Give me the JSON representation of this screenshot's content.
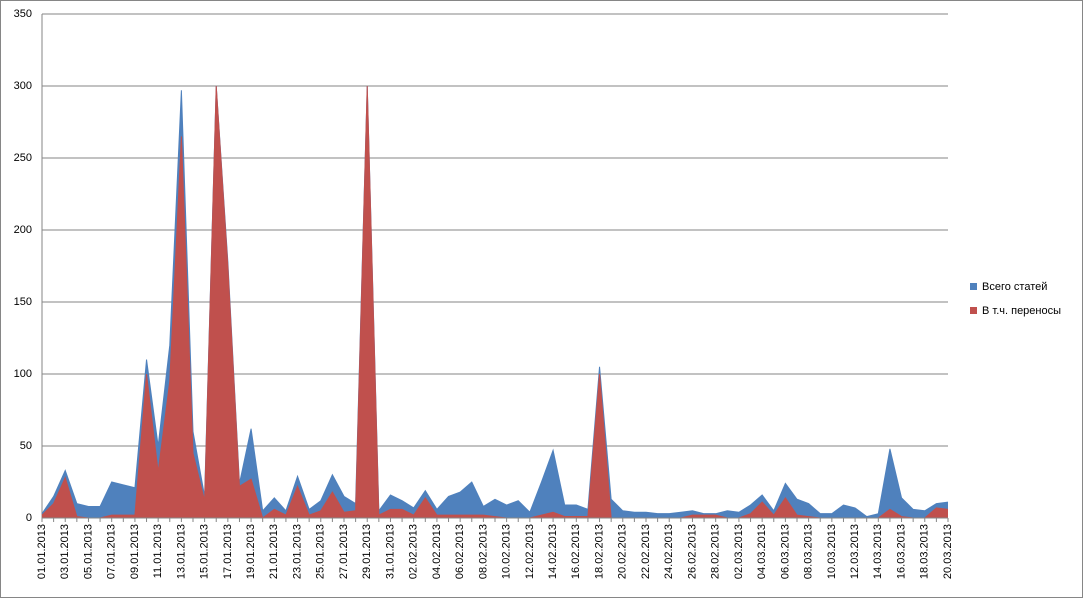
{
  "chart_data": {
    "type": "area",
    "categories": [
      "01.01.2013",
      null,
      "03.01.2013",
      null,
      "05.01.2013",
      null,
      "07.01.2013",
      null,
      "09.01.2013",
      null,
      "11.01.2013",
      null,
      "13.01.2013",
      null,
      "15.01.2013",
      null,
      "17.01.2013",
      null,
      "19.01.2013",
      null,
      "21.01.2013",
      null,
      "23.01.2013",
      null,
      "25.01.2013",
      null,
      "27.01.2013",
      null,
      "29.01.2013",
      null,
      "31.01.2013",
      null,
      "02.02.2013",
      null,
      "04.02.2013",
      null,
      "06.02.2013",
      null,
      "08.02.2013",
      null,
      "10.02.2013",
      null,
      "12.02.2013",
      null,
      "14.02.2013",
      null,
      "16.02.2013",
      null,
      "18.02.2013",
      null,
      "20.02.2013",
      null,
      "22.02.2013",
      null,
      "24.02.2013",
      null,
      "26.02.2013",
      null,
      "28.02.2013",
      null,
      "02.03.2013",
      null,
      "04.03.2013",
      null,
      "06.03.2013",
      null,
      "08.03.2013",
      null,
      "10.03.2013",
      null,
      "12.03.2013",
      null,
      "14.03.2013",
      null,
      "16.03.2013",
      null,
      "18.03.2013",
      null,
      "20.03.2013"
    ],
    "series": [
      {
        "name": "Всего статей",
        "color": "#4f81bd",
        "values": [
          3,
          15,
          33,
          10,
          8,
          8,
          25,
          23,
          21,
          110,
          50,
          120,
          297,
          60,
          15,
          300,
          178,
          24,
          62,
          5,
          14,
          5,
          29,
          6,
          12,
          30,
          15,
          10,
          300,
          5,
          16,
          12,
          7,
          19,
          6,
          15,
          18,
          25,
          8,
          13,
          9,
          12,
          4,
          25,
          47,
          9,
          9,
          6,
          105,
          13,
          5,
          4,
          4,
          3,
          3,
          4,
          5,
          3,
          3,
          5,
          4,
          9,
          16,
          5,
          24,
          13,
          10,
          3,
          3,
          9,
          7,
          1,
          3,
          48,
          14,
          6,
          5,
          10,
          11
        ]
      },
      {
        "name": "В т.ч. переносы",
        "color": "#c0504d",
        "values": [
          2,
          10,
          28,
          1,
          0,
          0,
          2,
          2,
          2,
          100,
          32,
          95,
          265,
          45,
          12,
          300,
          175,
          22,
          27,
          0,
          6,
          2,
          22,
          2,
          5,
          18,
          4,
          5,
          300,
          2,
          6,
          6,
          2,
          14,
          2,
          2,
          2,
          2,
          2,
          1,
          0,
          0,
          0,
          2,
          4,
          1,
          1,
          1,
          100,
          0,
          0,
          0,
          0,
          0,
          0,
          0,
          2,
          2,
          2,
          0,
          0,
          3,
          11,
          2,
          14,
          2,
          1,
          0,
          0,
          0,
          0,
          0,
          0,
          6,
          1,
          0,
          0,
          7,
          6
        ]
      }
    ],
    "ylim": [
      0,
      350
    ],
    "yticks": [
      0,
      50,
      100,
      150,
      200,
      250,
      300,
      350
    ],
    "grid": true,
    "legend": "right"
  }
}
